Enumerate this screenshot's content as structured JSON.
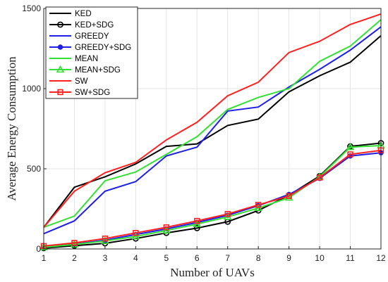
{
  "chart_data": {
    "type": "line",
    "title": "",
    "xlabel": "Number of UAVs",
    "ylabel": "Average Energy Consumption",
    "x": [
      1,
      2,
      3,
      4,
      5,
      6,
      7,
      8,
      9,
      10,
      11,
      12
    ],
    "xlim": [
      1,
      12
    ],
    "ylim": [
      0,
      1500
    ],
    "xticks": [
      "1",
      "2",
      "3",
      "4",
      "5",
      "6",
      "7",
      "8",
      "9",
      "10",
      "11",
      "12"
    ],
    "yticks": [
      "0",
      "500",
      "1000",
      "1500"
    ],
    "grid": true,
    "legend_position": "top-left",
    "series": [
      {
        "name": "KED",
        "color": "#000000",
        "marker": "none",
        "values": [
          135,
          385,
          450,
          530,
          640,
          655,
          770,
          810,
          980,
          1080,
          1165,
          1330
        ]
      },
      {
        "name": "KED+SDG",
        "color": "#000000",
        "marker": "circle",
        "values": [
          5,
          20,
          35,
          65,
          100,
          130,
          170,
          240,
          335,
          455,
          640,
          660
        ]
      },
      {
        "name": "GREEDY",
        "color": "#1f1fe6",
        "marker": "none",
        "values": [
          95,
          175,
          360,
          420,
          580,
          635,
          860,
          885,
          1010,
          1120,
          1240,
          1385
        ]
      },
      {
        "name": "GREEDY+SDG",
        "color": "#1f1fe6",
        "marker": "dot",
        "values": [
          10,
          30,
          55,
          90,
          125,
          165,
          210,
          270,
          340,
          440,
          580,
          600
        ]
      },
      {
        "name": "MEAN",
        "color": "#33e033",
        "marker": "none",
        "values": [
          135,
          205,
          425,
          480,
          590,
          700,
          870,
          945,
          1000,
          1170,
          1265,
          1430
        ]
      },
      {
        "name": "MEAN+SDG",
        "color": "#33e033",
        "marker": "triangle",
        "values": [
          10,
          28,
          50,
          78,
          115,
          155,
          200,
          255,
          320,
          450,
          635,
          645
        ]
      },
      {
        "name": "SW",
        "color": "#ff2020",
        "marker": "none",
        "values": [
          135,
          360,
          475,
          540,
          680,
          790,
          955,
          1040,
          1225,
          1295,
          1400,
          1465
        ]
      },
      {
        "name": "SW+SDG",
        "color": "#ff2020",
        "marker": "square",
        "values": [
          18,
          38,
          65,
          100,
          135,
          175,
          218,
          275,
          330,
          445,
          590,
          615
        ]
      }
    ]
  }
}
